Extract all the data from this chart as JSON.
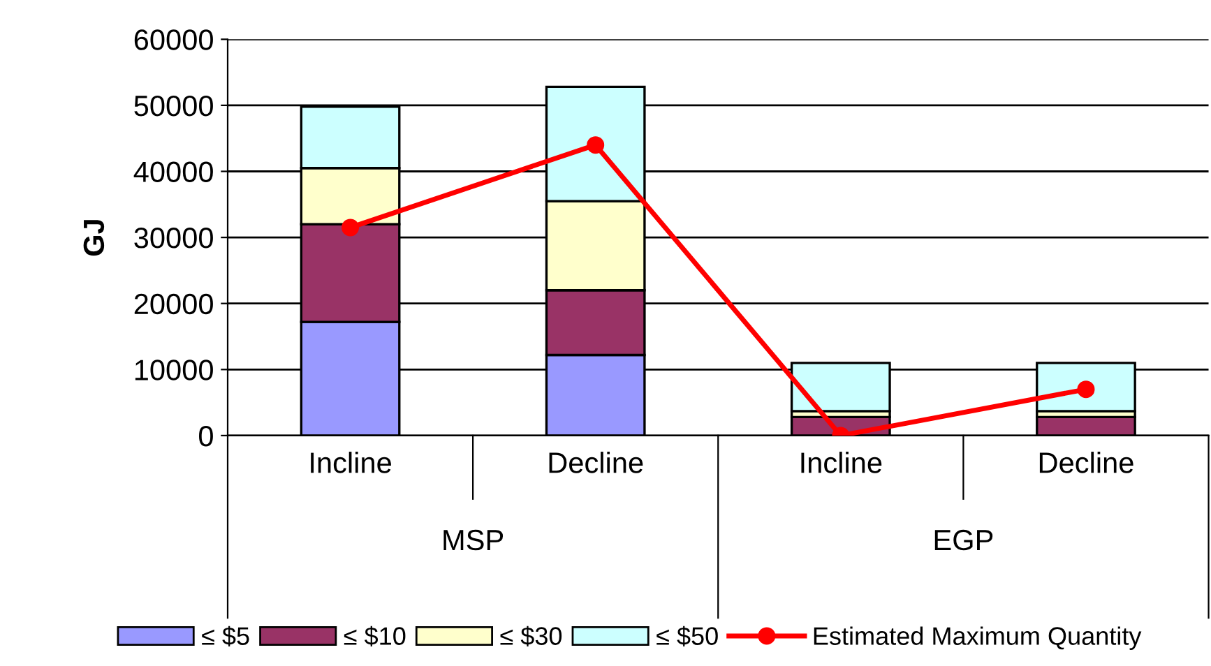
{
  "chart_data": {
    "type": "bar",
    "stacked": true,
    "ylabel": "GJ",
    "categories": [
      "Incline",
      "Decline",
      "Incline",
      "Decline"
    ],
    "annotations": [
      "MSP",
      "EGP"
    ],
    "series": [
      {
        "name": "≤ $5",
        "color": "#9999ff",
        "values": [
          17200,
          12200,
          0,
          0
        ]
      },
      {
        "name": "≤ $10",
        "color": "#993366",
        "values": [
          14800,
          9800,
          2800,
          2800
        ]
      },
      {
        "name": "≤ $30",
        "color": "#ffffcc",
        "values": [
          8500,
          13500,
          900,
          900
        ]
      },
      {
        "name": "≤ $50",
        "color": "#ccffff",
        "values": [
          9300,
          17300,
          7300,
          7300
        ]
      },
      {
        "name": "Estimated Maximum Quantity",
        "type": "line",
        "color": "#ff0000",
        "marker": "circle",
        "values": [
          31500,
          44000,
          0,
          7000
        ]
      }
    ],
    "ylim": [
      0,
      60000
    ],
    "yticks": [
      0,
      10000,
      20000,
      30000,
      40000,
      50000,
      60000
    ],
    "grid": "y",
    "legend": "bottom"
  }
}
